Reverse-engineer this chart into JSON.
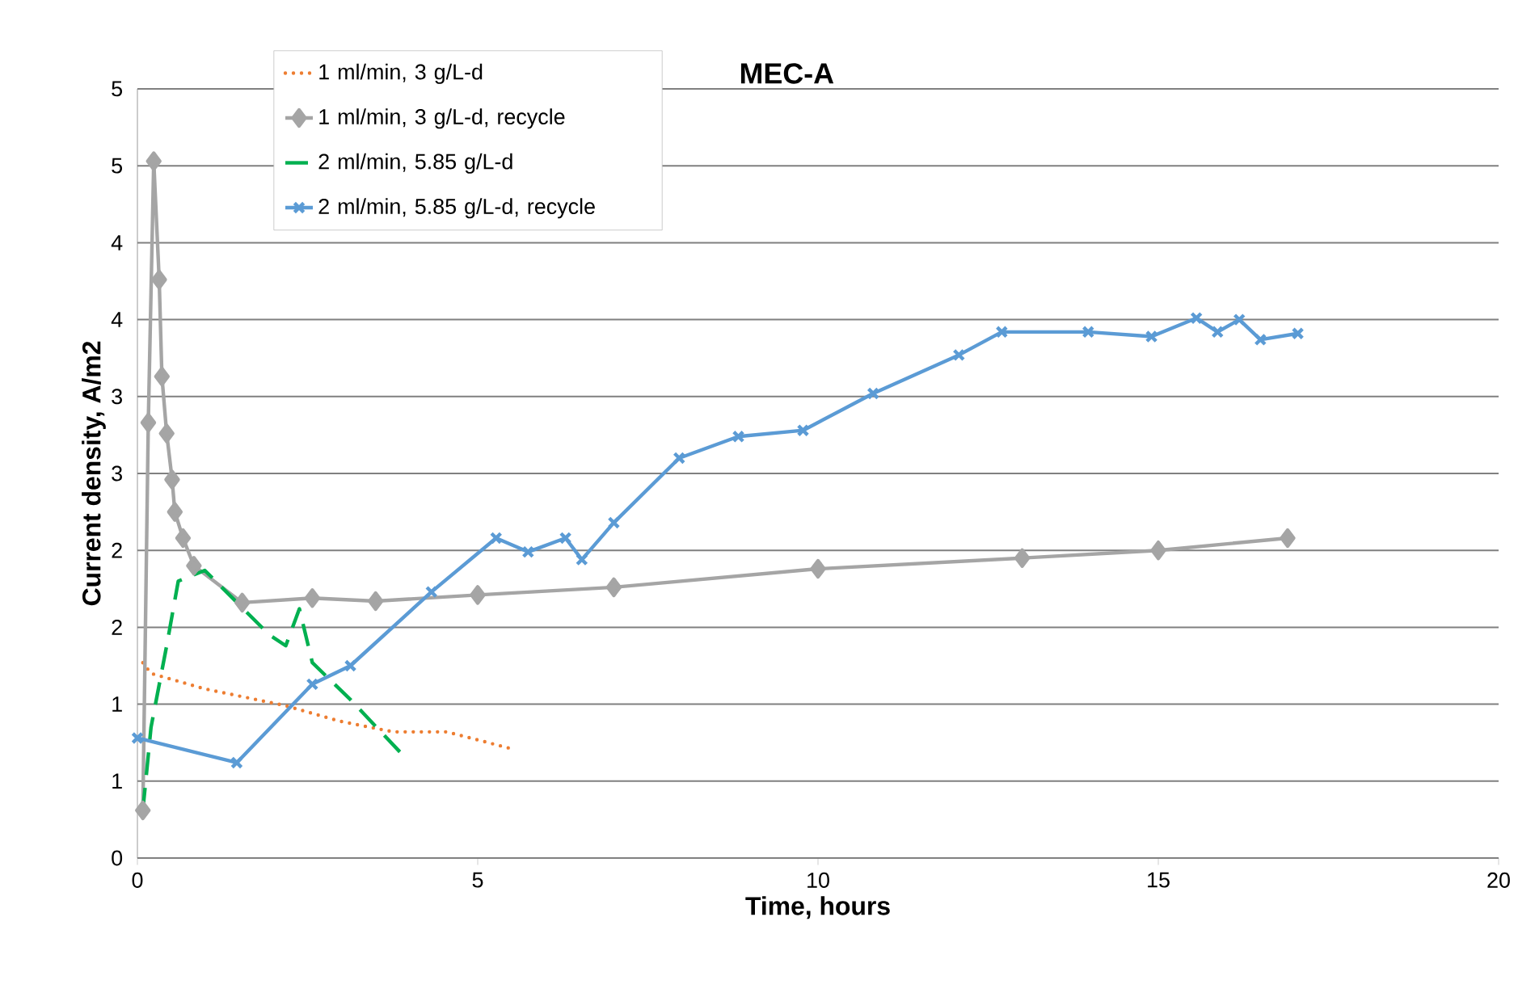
{
  "chart_data": {
    "type": "line",
    "title": "MEC-A",
    "xlabel": "Time, hours",
    "ylabel": "Current density, A/m2",
    "xlim": [
      0,
      20
    ],
    "xticks": [
      0,
      5,
      10,
      15,
      20
    ],
    "ylim": [
      0,
      5
    ],
    "yticks": [
      0,
      {
        "value": 0.5,
        "label": "1"
      },
      1,
      {
        "value": 1.5,
        "label": "2"
      },
      2,
      {
        "value": 2.5,
        "label": "3"
      },
      3,
      {
        "value": 3.5,
        "label": "4"
      },
      4,
      {
        "value": 4.5,
        "label": "5"
      },
      5
    ],
    "grid": "y",
    "legend": "top left",
    "series": [
      {
        "name": "1 ml/min, 3 g/L-d",
        "color": "#ed7d31",
        "marker": "none",
        "line_style": "dotted",
        "x": [
          0.08,
          0.2,
          0.99,
          2.18,
          2.97,
          3.76,
          4.55,
          5.5
        ],
        "values": [
          1.27,
          1.2,
          1.1,
          0.99,
          0.89,
          0.82,
          0.82,
          0.71
        ]
      },
      {
        "name": "1 ml/min, 3 g/L-d, recycle",
        "color": "#a5a5a5",
        "marker": "diamond",
        "line_style": "solid",
        "x": [
          0.08,
          0.16,
          0.24,
          0.32,
          0.36,
          0.43,
          0.51,
          0.55,
          0.67,
          0.83,
          1.54,
          2.57,
          3.5,
          5,
          7,
          10,
          13,
          15,
          16.9
        ],
        "values": [
          0.31,
          2.83,
          4.53,
          3.76,
          3.13,
          2.76,
          2.46,
          2.25,
          2.08,
          1.9,
          1.66,
          1.69,
          1.67,
          1.71,
          1.76,
          1.88,
          1.95,
          2.0,
          2.08
        ]
      },
      {
        "name": "2 ml/min, 5.85 g/L-d",
        "color": "#00b050",
        "marker": "none",
        "line_style": "dashed",
        "x": [
          0.08,
          0.2,
          0.43,
          0.6,
          0.99,
          1.94,
          2.18,
          2.38,
          2.57,
          3.13,
          3.92
        ],
        "values": [
          0.31,
          0.85,
          1.38,
          1.8,
          1.87,
          1.45,
          1.38,
          1.62,
          1.27,
          1.03,
          0.66
        ]
      },
      {
        "name": "2 ml/min, 5.85 g/L-d, recycle",
        "color": "#5b9bd5",
        "marker": "cross",
        "line_style": "solid",
        "x": [
          0,
          1.46,
          2.57,
          3.13,
          4.32,
          5.27,
          5.74,
          6.29,
          6.53,
          7.0,
          7.96,
          8.83,
          9.78,
          10.81,
          12.07,
          12.7,
          13.97,
          14.9,
          15.56,
          15.87,
          16.19,
          16.5,
          17.05
        ],
        "values": [
          0.78,
          0.62,
          1.13,
          1.25,
          1.73,
          2.08,
          1.99,
          2.08,
          1.94,
          2.18,
          2.6,
          2.74,
          2.78,
          3.02,
          3.27,
          3.42,
          3.42,
          3.39,
          3.51,
          3.42,
          3.5,
          3.37,
          3.41
        ]
      }
    ]
  }
}
